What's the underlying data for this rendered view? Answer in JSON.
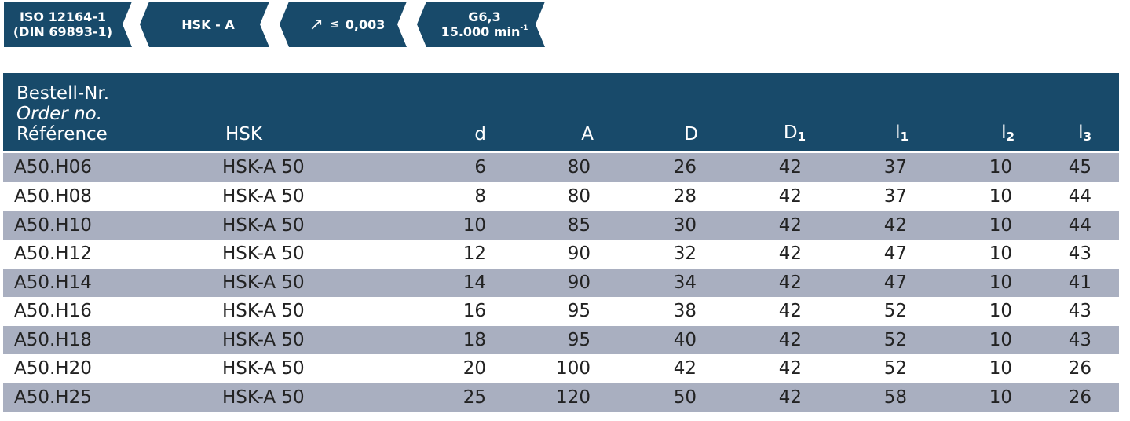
{
  "badges": [
    {
      "line1": "ISO 12164-1",
      "line2": "(DIN 69893-1)"
    },
    {
      "line1": "HSK - A"
    },
    {
      "line1": "↗",
      "le": "≤",
      "value": "0,003"
    },
    {
      "line1": "G6,3",
      "line2": "15.000 min",
      "sup": "-1"
    }
  ],
  "colors": {
    "header_bg": "#184a6a",
    "row_shade": "#a9afc0",
    "badge_bg": "#184a6a"
  },
  "table": {
    "headers": {
      "ref_de": "Bestell-Nr.",
      "ref_en": "Order no.",
      "ref_fr": "Référence",
      "hsk": "HSK",
      "d": "d",
      "A": "A",
      "D": "D",
      "D1": "D",
      "D1_sub": "1",
      "l1": "l",
      "l1_sub": "1",
      "l2": "l",
      "l2_sub": "2",
      "l3": "l",
      "l3_sub": "3"
    },
    "rows": [
      {
        "ref": "A50.H06",
        "hsk": "HSK-A 50",
        "d": "6",
        "A": "80",
        "D": "26",
        "D1": "42",
        "l1": "37",
        "l2": "10",
        "l3": "45"
      },
      {
        "ref": "A50.H08",
        "hsk": "HSK-A 50",
        "d": "8",
        "A": "80",
        "D": "28",
        "D1": "42",
        "l1": "37",
        "l2": "10",
        "l3": "44"
      },
      {
        "ref": "A50.H10",
        "hsk": "HSK-A 50",
        "d": "10",
        "A": "85",
        "D": "30",
        "D1": "42",
        "l1": "42",
        "l2": "10",
        "l3": "44"
      },
      {
        "ref": "A50.H12",
        "hsk": "HSK-A 50",
        "d": "12",
        "A": "90",
        "D": "32",
        "D1": "42",
        "l1": "47",
        "l2": "10",
        "l3": "43"
      },
      {
        "ref": "A50.H14",
        "hsk": "HSK-A 50",
        "d": "14",
        "A": "90",
        "D": "34",
        "D1": "42",
        "l1": "47",
        "l2": "10",
        "l3": "41"
      },
      {
        "ref": "A50.H16",
        "hsk": "HSK-A 50",
        "d": "16",
        "A": "95",
        "D": "38",
        "D1": "42",
        "l1": "52",
        "l2": "10",
        "l3": "43"
      },
      {
        "ref": "A50.H18",
        "hsk": "HSK-A 50",
        "d": "18",
        "A": "95",
        "D": "40",
        "D1": "42",
        "l1": "52",
        "l2": "10",
        "l3": "43"
      },
      {
        "ref": "A50.H20",
        "hsk": "HSK-A 50",
        "d": "20",
        "A": "100",
        "D": "42",
        "D1": "42",
        "l1": "52",
        "l2": "10",
        "l3": "26"
      },
      {
        "ref": "A50.H25",
        "hsk": "HSK-A 50",
        "d": "25",
        "A": "120",
        "D": "50",
        "D1": "42",
        "l1": "58",
        "l2": "10",
        "l3": "26"
      }
    ]
  }
}
